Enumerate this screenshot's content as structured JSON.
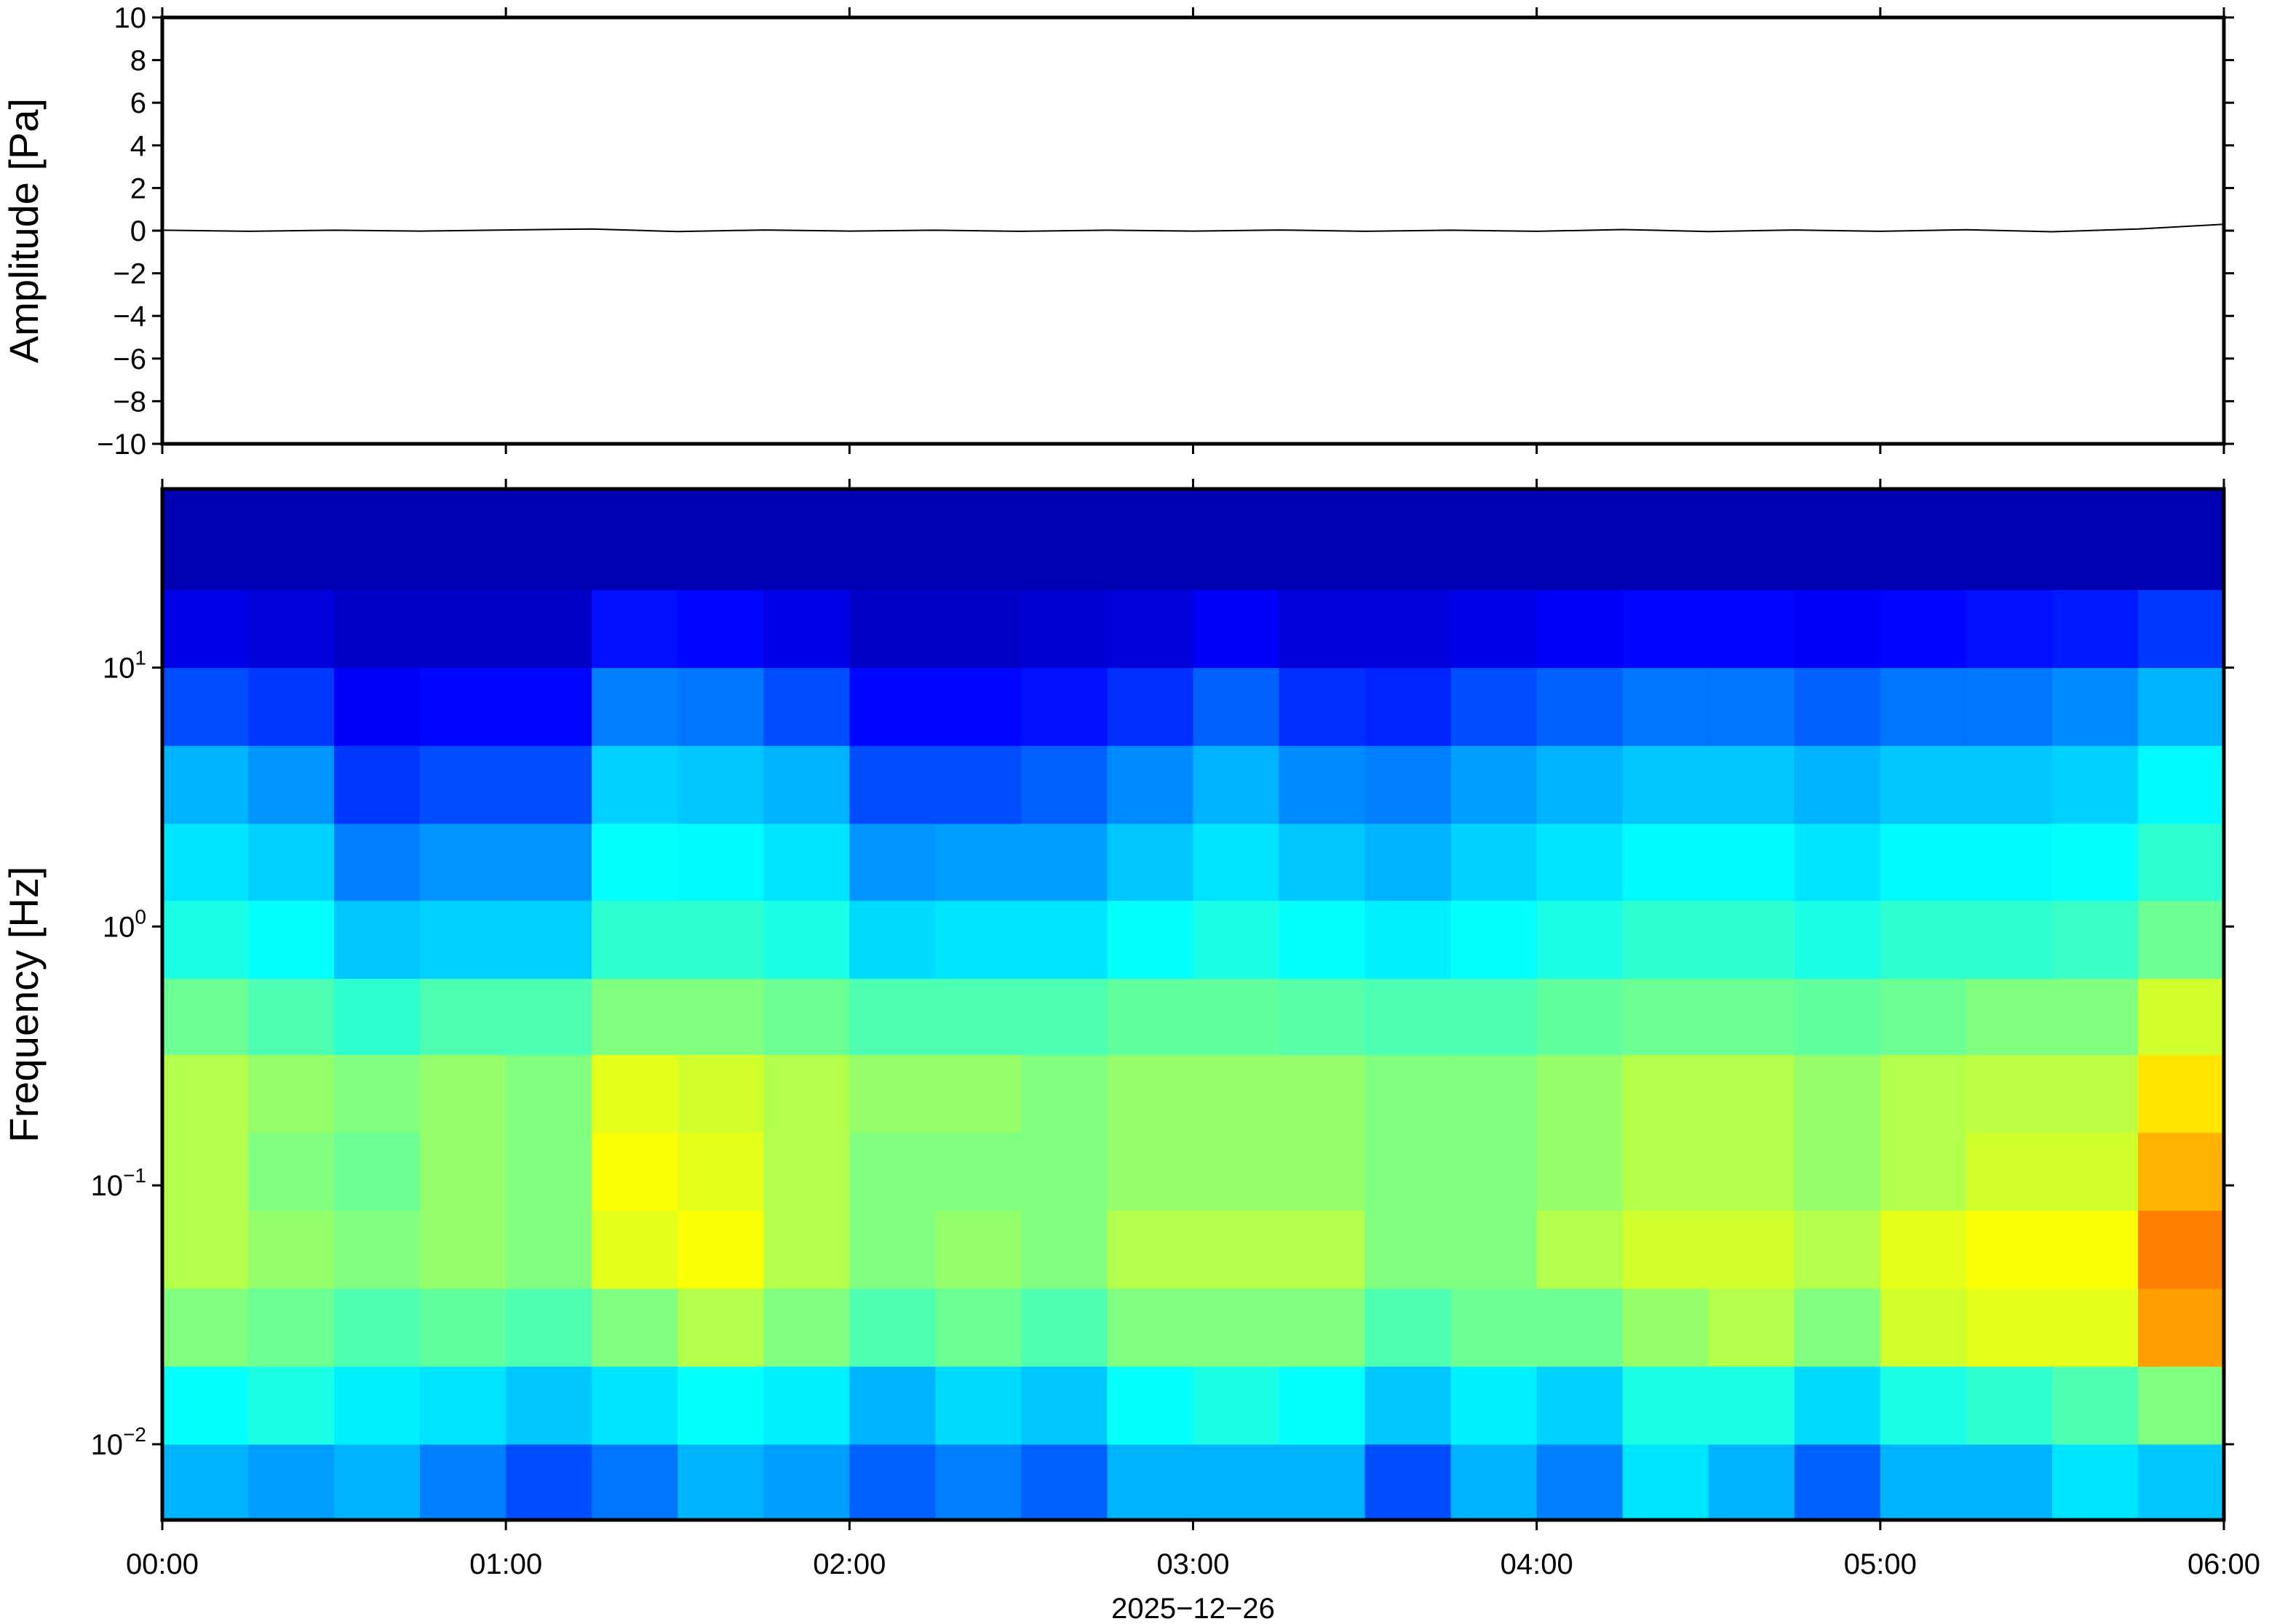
{
  "chart_data": [
    {
      "type": "line",
      "ylabel": "Amplitude [Pa]",
      "color": "#000000",
      "x": [
        0,
        0.25,
        0.5,
        0.75,
        1,
        1.25,
        1.5,
        1.75,
        2,
        2.25,
        2.5,
        2.75,
        3,
        3.25,
        3.5,
        3.75,
        4,
        4.25,
        4.5,
        4.75,
        5,
        5.25,
        5.5,
        5.75,
        6
      ],
      "values": [
        0.02,
        -0.03,
        0.02,
        -0.02,
        0.03,
        0.08,
        -0.04,
        0.03,
        -0.02,
        0.02,
        -0.03,
        0.02,
        -0.02,
        0.03,
        -0.03,
        0.02,
        -0.03,
        0.05,
        -0.04,
        0.03,
        -0.03,
        0.04,
        -0.05,
        0.08,
        0.3
      ],
      "xlim": [
        0,
        6
      ],
      "ylim": [
        -10,
        10
      ],
      "yticks": [
        {
          "value": -10,
          "label": "−10"
        },
        {
          "value": -8,
          "label": "−8"
        },
        {
          "value": -6,
          "label": "−6"
        },
        {
          "value": -4,
          "label": "−4"
        },
        {
          "value": -2,
          "label": "−2"
        },
        0,
        2,
        4,
        6,
        8,
        10
      ]
    },
    {
      "type": "heatmap",
      "ylabel": "Frequency [Hz]",
      "xlabel": "2025−12−26",
      "colormap": "jet",
      "ylog": true,
      "xlim": [
        0,
        6
      ],
      "ylim": [
        0.0051,
        49
      ],
      "xticks": [
        {
          "value": 0,
          "label": "00:00"
        },
        {
          "value": 1,
          "label": "01:00"
        },
        {
          "value": 2,
          "label": "02:00"
        },
        {
          "value": 3,
          "label": "03:00"
        },
        {
          "value": 4,
          "label": "04:00"
        },
        {
          "value": 5,
          "label": "05:00"
        },
        {
          "value": 6,
          "label": "06:00"
        }
      ],
      "yticks": [
        {
          "value": 0.01,
          "label": "10",
          "sup": "−2"
        },
        {
          "value": 0.1,
          "label": "10",
          "sup": "−1"
        },
        {
          "value": 1,
          "label": "10",
          "sup": "0"
        },
        {
          "value": 10,
          "label": "10",
          "sup": "1"
        }
      ],
      "x": [
        0,
        0.25,
        0.5,
        0.75,
        1,
        1.25,
        1.5,
        1.75,
        2,
        2.25,
        2.5,
        2.75,
        3,
        3.25,
        3.5,
        3.75,
        4,
        4.25,
        4.5,
        4.75,
        5,
        5.25,
        5.5,
        5.75,
        6
      ],
      "y": [
        0.0051,
        0.01,
        0.02,
        0.04,
        0.08,
        0.16,
        0.32,
        0.63,
        1.26,
        2.5,
        5,
        10,
        20,
        49
      ],
      "z": [
        [
          0.3,
          0.28,
          0.3,
          0.25,
          0.2,
          0.24,
          0.3,
          0.28,
          0.22,
          0.25,
          0.22,
          0.3,
          0.3,
          0.3,
          0.2,
          0.3,
          0.25,
          0.35,
          0.3,
          0.22,
          0.3,
          0.3,
          0.35,
          0.32
        ],
        [
          0.38,
          0.4,
          0.36,
          0.35,
          0.32,
          0.35,
          0.38,
          0.36,
          0.3,
          0.34,
          0.32,
          0.38,
          0.4,
          0.38,
          0.32,
          0.36,
          0.33,
          0.4,
          0.4,
          0.34,
          0.4,
          0.42,
          0.45,
          0.5
        ],
        [
          0.5,
          0.48,
          0.45,
          0.47,
          0.45,
          0.5,
          0.55,
          0.5,
          0.45,
          0.48,
          0.45,
          0.5,
          0.5,
          0.5,
          0.45,
          0.48,
          0.48,
          0.52,
          0.55,
          0.5,
          0.58,
          0.6,
          0.6,
          0.72
        ],
        [
          0.55,
          0.52,
          0.5,
          0.52,
          0.5,
          0.6,
          0.62,
          0.55,
          0.5,
          0.52,
          0.5,
          0.55,
          0.55,
          0.55,
          0.5,
          0.5,
          0.55,
          0.58,
          0.58,
          0.55,
          0.6,
          0.62,
          0.62,
          0.75
        ],
        [
          0.55,
          0.5,
          0.48,
          0.52,
          0.5,
          0.62,
          0.6,
          0.55,
          0.5,
          0.5,
          0.5,
          0.52,
          0.52,
          0.52,
          0.5,
          0.5,
          0.52,
          0.55,
          0.55,
          0.52,
          0.55,
          0.58,
          0.58,
          0.7
        ],
        [
          0.55,
          0.52,
          0.5,
          0.52,
          0.5,
          0.6,
          0.58,
          0.55,
          0.52,
          0.52,
          0.5,
          0.52,
          0.52,
          0.52,
          0.5,
          0.5,
          0.52,
          0.55,
          0.55,
          0.52,
          0.55,
          0.56,
          0.56,
          0.65
        ],
        [
          0.48,
          0.45,
          0.42,
          0.45,
          0.45,
          0.5,
          0.5,
          0.48,
          0.45,
          0.45,
          0.45,
          0.47,
          0.47,
          0.46,
          0.45,
          0.45,
          0.47,
          0.48,
          0.48,
          0.47,
          0.48,
          0.5,
          0.5,
          0.58
        ],
        [
          0.4,
          0.38,
          0.32,
          0.33,
          0.33,
          0.42,
          0.42,
          0.4,
          0.34,
          0.35,
          0.35,
          0.38,
          0.4,
          0.38,
          0.36,
          0.38,
          0.4,
          0.42,
          0.42,
          0.4,
          0.42,
          0.42,
          0.43,
          0.48
        ],
        [
          0.35,
          0.33,
          0.25,
          0.27,
          0.27,
          0.38,
          0.37,
          0.35,
          0.27,
          0.28,
          0.28,
          0.32,
          0.35,
          0.32,
          0.3,
          0.33,
          0.35,
          0.37,
          0.37,
          0.35,
          0.37,
          0.37,
          0.38,
          0.42
        ],
        [
          0.3,
          0.27,
          0.18,
          0.2,
          0.2,
          0.33,
          0.32,
          0.3,
          0.2,
          0.2,
          0.22,
          0.26,
          0.3,
          0.26,
          0.25,
          0.28,
          0.3,
          0.32,
          0.32,
          0.3,
          0.32,
          0.32,
          0.33,
          0.37
        ],
        [
          0.2,
          0.18,
          0.12,
          0.13,
          0.13,
          0.25,
          0.24,
          0.2,
          0.13,
          0.13,
          0.14,
          0.17,
          0.22,
          0.17,
          0.16,
          0.2,
          0.22,
          0.24,
          0.24,
          0.22,
          0.24,
          0.24,
          0.26,
          0.3
        ],
        [
          0.1,
          0.09,
          0.07,
          0.07,
          0.07,
          0.14,
          0.13,
          0.1,
          0.07,
          0.07,
          0.08,
          0.09,
          0.12,
          0.09,
          0.09,
          0.1,
          0.12,
          0.13,
          0.13,
          0.12,
          0.13,
          0.14,
          0.15,
          0.18
        ],
        [
          0.05,
          0.05,
          0.05,
          0.05,
          0.05,
          0.05,
          0.05,
          0.05,
          0.05,
          0.05,
          0.05,
          0.05,
          0.05,
          0.05,
          0.05,
          0.05,
          0.05,
          0.05,
          0.05,
          0.05,
          0.05,
          0.05,
          0.05,
          0.05
        ]
      ]
    }
  ]
}
